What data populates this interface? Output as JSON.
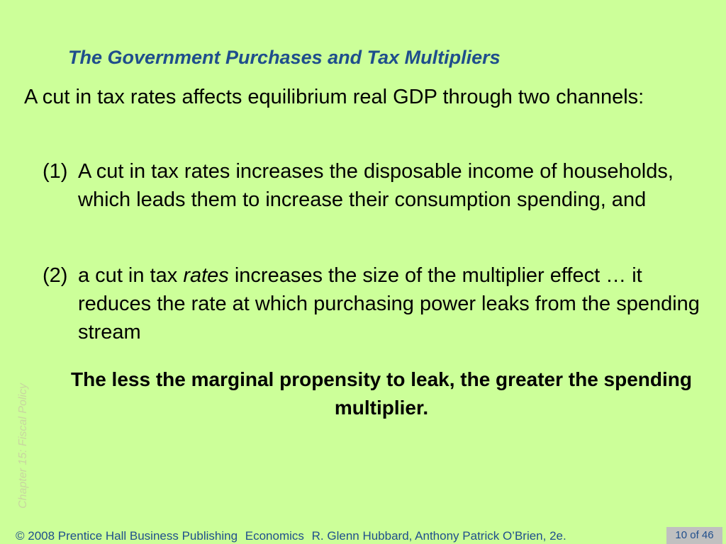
{
  "slide": {
    "title": "The Government Purchases and Tax Multipliers",
    "intro": "A cut in tax rates affects equilibrium real GDP through two channels:",
    "items": [
      {
        "number": "(1)",
        "text": "A cut in tax rates increases the disposable income of households, which leads them to increase their consumption spending, and"
      },
      {
        "number": "(2)",
        "text_before": "a cut in tax ",
        "text_emphasis": "rates",
        "text_after": " increases the size of the multiplier effect … it reduces the rate at which purchasing power leaks from the spending stream"
      }
    ],
    "conclusion": "The less the marginal propensity to leak, the greater the spending multiplier."
  },
  "sidebar": {
    "chapter": "Chapter 15:  Fiscal Policy"
  },
  "footer": {
    "copyright": "© 2008 Prentice Hall Business Publishing",
    "book": "Economics",
    "authors": "R. Glenn Hubbard, Anthony Patrick O’Brien, 2e.",
    "page": "10 of 46"
  },
  "colors": {
    "background": "#ccff99",
    "title": "#1f4e8c",
    "sidebar": "#c8d6a0",
    "page_box": "#c0c0c0"
  }
}
